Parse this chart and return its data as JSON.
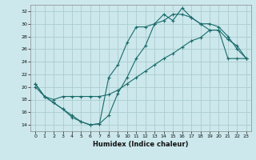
{
  "xlabel": "Humidex (Indice chaleur)",
  "bg_color": "#cce8ec",
  "grid_color": "#aacccc",
  "line_color": "#1a6b6b",
  "xlim": [
    -0.5,
    23.5
  ],
  "ylim": [
    13,
    33
  ],
  "xticks": [
    0,
    1,
    2,
    3,
    4,
    5,
    6,
    7,
    8,
    9,
    10,
    11,
    12,
    13,
    14,
    15,
    16,
    17,
    18,
    19,
    20,
    21,
    22,
    23
  ],
  "yticks": [
    14,
    16,
    18,
    20,
    22,
    24,
    26,
    28,
    30,
    32
  ],
  "line1_x": [
    0,
    1,
    2,
    3,
    4,
    5,
    6,
    7,
    8,
    9,
    10,
    11,
    12,
    13,
    14,
    15,
    16,
    17,
    18,
    19,
    20,
    21,
    22,
    23
  ],
  "line1_y": [
    20.5,
    18.5,
    17.5,
    16.5,
    15.5,
    14.5,
    14.0,
    14.2,
    15.5,
    19.0,
    21.5,
    24.5,
    26.5,
    30.0,
    30.5,
    31.5,
    31.5,
    31.0,
    30.0,
    29.0,
    29.0,
    27.5,
    26.5,
    24.5
  ],
  "line2_x": [
    0,
    1,
    2,
    3,
    4,
    5,
    6,
    7,
    8,
    9,
    10,
    11,
    12,
    13,
    14,
    15,
    16,
    17,
    18,
    19,
    20,
    21,
    22,
    23
  ],
  "line2_y": [
    20.5,
    18.5,
    17.5,
    16.5,
    15.2,
    14.5,
    14.0,
    14.2,
    21.5,
    23.5,
    27.0,
    29.5,
    29.5,
    30.0,
    31.5,
    30.5,
    32.5,
    31.0,
    30.0,
    30.0,
    29.5,
    28.0,
    26.0,
    24.5
  ],
  "line3_x": [
    0,
    1,
    2,
    3,
    4,
    5,
    6,
    7,
    8,
    9,
    10,
    11,
    12,
    13,
    14,
    15,
    16,
    17,
    18,
    19,
    20,
    21,
    22,
    23
  ],
  "line3_y": [
    20.0,
    18.5,
    18.0,
    18.5,
    18.5,
    18.5,
    18.5,
    18.5,
    18.8,
    19.5,
    20.5,
    21.5,
    22.5,
    23.5,
    24.5,
    25.3,
    26.3,
    27.3,
    27.8,
    29.0,
    29.0,
    24.5,
    24.5,
    24.5
  ]
}
